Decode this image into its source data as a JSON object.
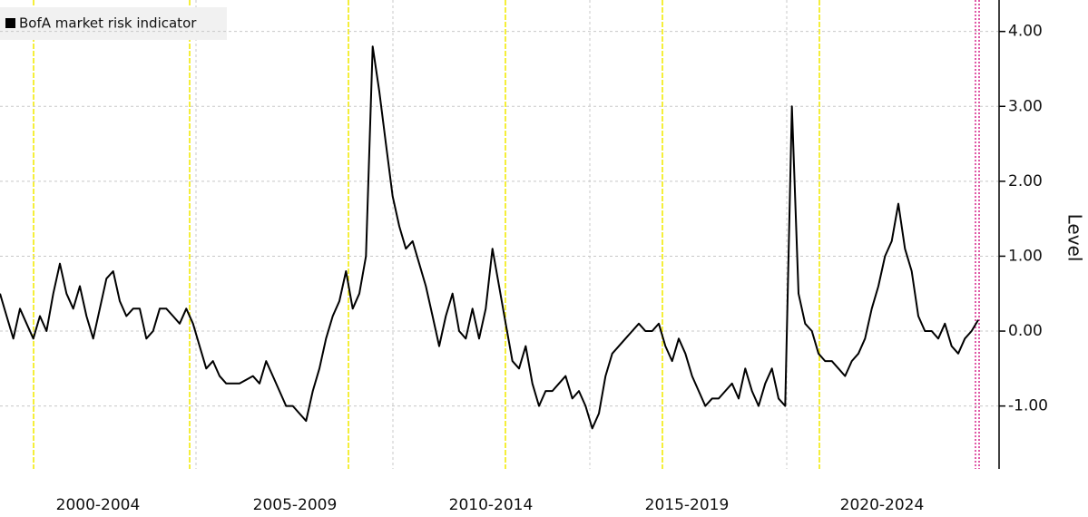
{
  "chart_data": {
    "type": "line",
    "series": [
      {
        "name": "BofA market risk indicator",
        "color": "#000000",
        "values": [
          0.5,
          0.2,
          -0.1,
          0.3,
          0.1,
          -0.1,
          0.2,
          0.0,
          0.5,
          0.9,
          0.5,
          0.3,
          0.6,
          0.2,
          -0.1,
          0.3,
          0.7,
          0.8,
          0.4,
          0.2,
          0.3,
          0.3,
          -0.1,
          0.0,
          0.3,
          0.3,
          0.2,
          0.1,
          0.3,
          0.1,
          -0.2,
          -0.5,
          -0.4,
          -0.6,
          -0.7,
          -0.7,
          -0.7,
          -0.65,
          -0.6,
          -0.7,
          -0.4,
          -0.6,
          -0.8,
          -1.0,
          -1.0,
          -1.1,
          -1.2,
          -0.8,
          -0.5,
          -0.1,
          0.2,
          0.4,
          0.8,
          0.3,
          0.5,
          1.0,
          3.8,
          3.2,
          2.5,
          1.8,
          1.4,
          1.1,
          1.2,
          0.9,
          0.6,
          0.2,
          -0.2,
          0.2,
          0.5,
          0.0,
          -0.1,
          0.3,
          -0.1,
          0.3,
          1.1,
          0.6,
          0.1,
          -0.4,
          -0.5,
          -0.2,
          -0.7,
          -1.0,
          -0.8,
          -0.8,
          -0.7,
          -0.6,
          -0.9,
          -0.8,
          -1.0,
          -1.3,
          -1.1,
          -0.6,
          -0.3,
          -0.2,
          -0.1,
          0.0,
          0.1,
          0.0,
          0.0,
          0.1,
          -0.2,
          -0.4,
          -0.1,
          -0.3,
          -0.6,
          -0.8,
          -1.0,
          -0.9,
          -0.9,
          -0.8,
          -0.7,
          -0.9,
          -0.5,
          -0.8,
          -1.0,
          -0.7,
          -0.5,
          -0.9,
          -1.0,
          3.0,
          0.5,
          0.1,
          0.0,
          -0.3,
          -0.4,
          -0.4,
          -0.5,
          -0.6,
          -0.4,
          -0.3,
          -0.1,
          0.3,
          0.6,
          1.0,
          1.2,
          1.7,
          1.1,
          0.8,
          0.2,
          0.0,
          0.0,
          -0.1,
          0.1,
          -0.2,
          -0.3,
          -0.1,
          0.0,
          0.15
        ]
      }
    ],
    "x_labels": [
      "2000-2004",
      "2005-2009",
      "2010-2014",
      "2015-2019",
      "2020-2024"
    ],
    "y_label": "Level",
    "ylim": [
      -1.84,
      4.42
    ],
    "yticks": [
      {
        "value": -1,
        "label": "-1.00"
      },
      {
        "value": 0,
        "label": "0.00"
      },
      {
        "value": 1,
        "label": "1.00"
      },
      {
        "value": 2,
        "label": "2.00"
      },
      {
        "value": 3,
        "label": "3.00"
      },
      {
        "value": 4,
        "label": "4.00"
      }
    ],
    "grid": true,
    "legend": "top-left"
  }
}
